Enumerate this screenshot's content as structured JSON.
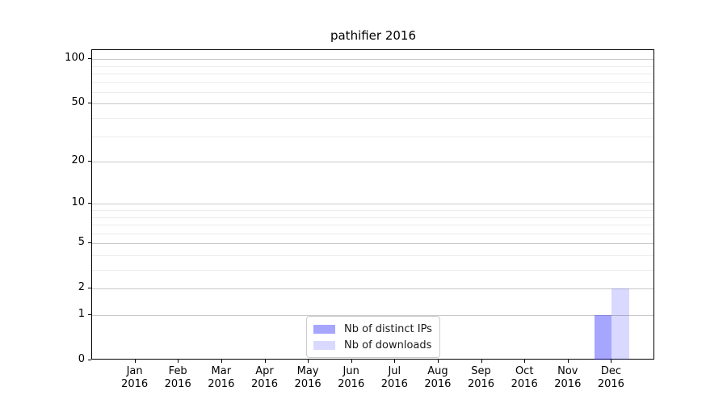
{
  "chart_data": {
    "type": "bar",
    "title": "pathifier 2016",
    "x_year": "2016",
    "categories": [
      "Jan",
      "Feb",
      "Mar",
      "Apr",
      "May",
      "Jun",
      "Jul",
      "Aug",
      "Sep",
      "Oct",
      "Nov",
      "Dec"
    ],
    "series": [
      {
        "name": "Nb of distinct IPs",
        "color": "rgba(0,0,255,0.35)",
        "values": [
          0,
          0,
          0,
          0,
          0,
          0,
          0,
          0,
          0,
          0,
          0,
          1
        ]
      },
      {
        "name": "Nb of downloads",
        "color": "rgba(0,0,255,0.15)",
        "values": [
          0,
          0,
          0,
          0,
          0,
          0,
          0,
          0,
          0,
          0,
          0,
          2
        ]
      }
    ],
    "y_scale": "log1p",
    "y_ticks": [
      0,
      1,
      2,
      5,
      10,
      20,
      50,
      100
    ],
    "y_minor_ticks": [
      3,
      4,
      6,
      7,
      8,
      9,
      30,
      40,
      60,
      70,
      80,
      90
    ],
    "ylim": [
      0,
      115
    ],
    "grid": "horizontal major+minor",
    "legend_position": "lower center inside axes"
  }
}
